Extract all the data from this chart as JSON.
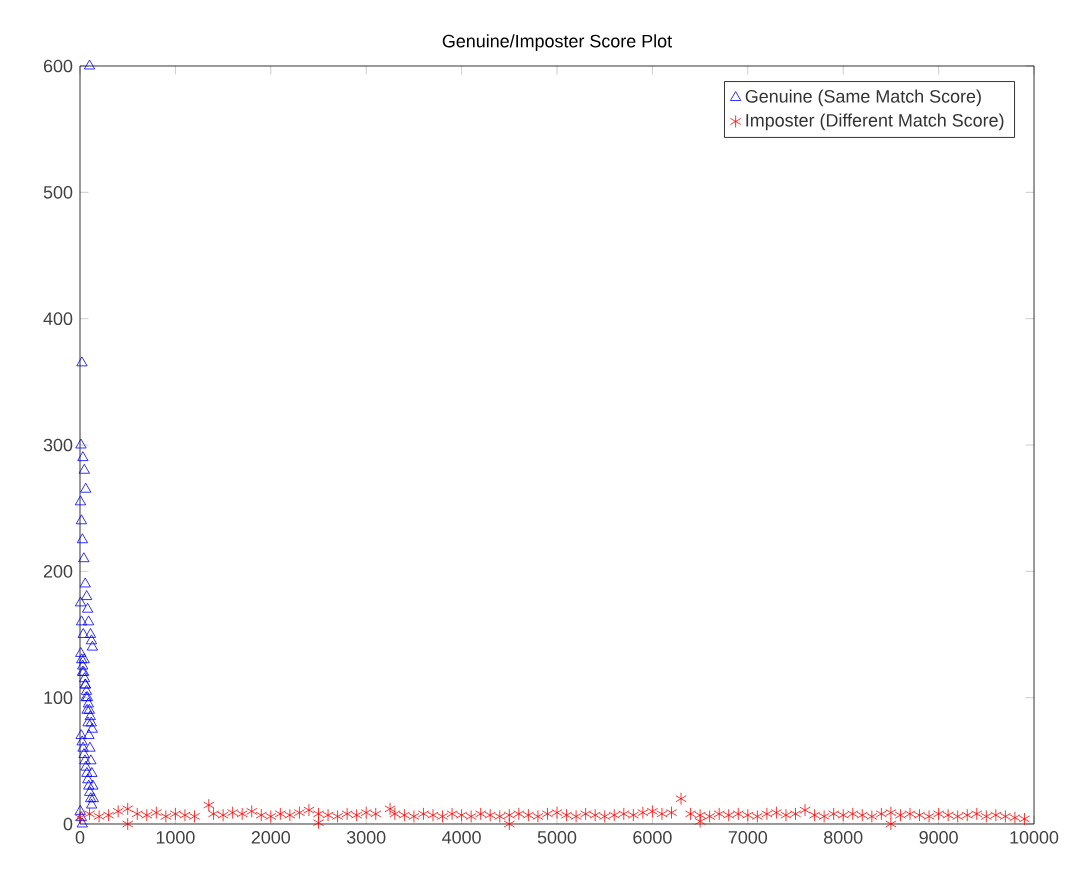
{
  "chart_data": {
    "type": "scatter",
    "title": "Genuine/Imposter Score Plot",
    "xlim": [
      0,
      10000
    ],
    "ylim": [
      0,
      600
    ],
    "xticks": [
      0,
      1000,
      2000,
      3000,
      4000,
      5000,
      6000,
      7000,
      8000,
      9000,
      10000
    ],
    "yticks": [
      0,
      100,
      200,
      300,
      400,
      500,
      600
    ],
    "grid": false,
    "legend": "top right",
    "series": [
      {
        "name": "Genuine (Same Match Score)",
        "color": "#0000ff",
        "marker": "triangle",
        "x": [
          100,
          20,
          10,
          30,
          45,
          60,
          5,
          15,
          25,
          40,
          55,
          70,
          80,
          90,
          110,
          120,
          130,
          8,
          18,
          28,
          38,
          48,
          58,
          68,
          78,
          88,
          98,
          108,
          118,
          128,
          12,
          22,
          32,
          42,
          52,
          62,
          72,
          82,
          92,
          102,
          112,
          122,
          3,
          14,
          24,
          34,
          44,
          54,
          64,
          74,
          84,
          94,
          104,
          114,
          124,
          135,
          140,
          6,
          16,
          26
        ],
        "values": [
          600,
          365,
          300,
          290,
          280,
          265,
          255,
          240,
          225,
          210,
          190,
          180,
          170,
          160,
          150,
          145,
          140,
          135,
          130,
          125,
          120,
          115,
          110,
          105,
          100,
          95,
          90,
          85,
          80,
          75,
          70,
          65,
          60,
          55,
          50,
          45,
          40,
          35,
          30,
          25,
          20,
          15,
          10,
          5,
          0,
          150,
          130,
          110,
          100,
          90,
          80,
          70,
          60,
          50,
          40,
          30,
          20,
          175,
          160,
          120
        ]
      },
      {
        "name": "Imposter (Different  Match Score)",
        "color": "#ff0000",
        "marker": "cross",
        "x": [
          0,
          100,
          200,
          300,
          400,
          500,
          600,
          700,
          800,
          900,
          1000,
          1100,
          1200,
          1350,
          1400,
          1500,
          1600,
          1700,
          1800,
          1900,
          2000,
          2100,
          2200,
          2300,
          2400,
          2500,
          2600,
          2700,
          2800,
          2900,
          3000,
          3100,
          3250,
          3300,
          3400,
          3500,
          3600,
          3700,
          3800,
          3900,
          4000,
          4100,
          4200,
          4300,
          4400,
          4500,
          4600,
          4700,
          4800,
          4900,
          5000,
          5100,
          5200,
          5300,
          5400,
          5500,
          5600,
          5700,
          5800,
          5900,
          6000,
          6100,
          6200,
          6300,
          6400,
          6500,
          6600,
          6700,
          6800,
          6900,
          7000,
          7100,
          7200,
          7300,
          7400,
          7500,
          7600,
          7700,
          7800,
          7900,
          8000,
          8100,
          8200,
          8300,
          8400,
          8500,
          8600,
          8700,
          8800,
          8900,
          9000,
          9100,
          9200,
          9300,
          9400,
          9500,
          9600,
          9700,
          9800,
          9900,
          500,
          2500,
          4500,
          6500,
          8500
        ],
        "values": [
          5,
          8,
          6,
          7,
          10,
          12,
          8,
          7,
          9,
          6,
          8,
          7,
          6,
          15,
          8,
          7,
          9,
          8,
          10,
          7,
          6,
          8,
          7,
          9,
          11,
          8,
          7,
          6,
          8,
          7,
          9,
          8,
          12,
          8,
          7,
          6,
          8,
          7,
          6,
          8,
          7,
          6,
          8,
          7,
          6,
          7,
          8,
          7,
          6,
          8,
          9,
          7,
          6,
          8,
          7,
          6,
          7,
          8,
          7,
          9,
          10,
          8,
          9,
          20,
          8,
          7,
          6,
          8,
          7,
          8,
          7,
          6,
          8,
          9,
          7,
          8,
          11,
          7,
          6,
          8,
          7,
          8,
          7,
          6,
          8,
          9,
          7,
          8,
          7,
          6,
          8,
          7,
          6,
          7,
          8,
          6,
          7,
          6,
          5,
          4,
          0,
          1,
          0,
          2,
          0
        ]
      }
    ]
  }
}
